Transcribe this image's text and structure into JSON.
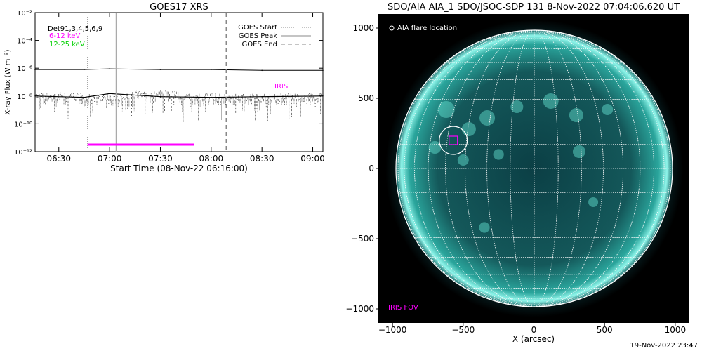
{
  "footer": {
    "timestamp": "19-Nov-2022 23:47"
  },
  "chart_data": [
    {
      "type": "line",
      "title": "GOES17 XRS",
      "xlabel": "Start Time (08-Nov-22 06:16:00)",
      "ylabel": "X-ray Flux (W m⁻²)",
      "x_ticks": [
        "06:30",
        "07:00",
        "07:30",
        "08:00",
        "08:30",
        "09:00"
      ],
      "y_ticks": [
        "10⁻¹²",
        "10⁻¹⁰",
        "10⁻⁸",
        "10⁻⁶",
        "10⁻⁴",
        "10⁻²"
      ],
      "y_log": true,
      "ylim": [
        1e-12,
        0.01
      ],
      "xlim": [
        "06:16",
        "09:06"
      ],
      "detectors_label": "Det91,3,4,5,6,9",
      "series": [
        {
          "name": "6-12 keV",
          "color": "#ff00ff",
          "x": [
            "06:16",
            "06:45",
            "07:00",
            "07:30",
            "08:00",
            "08:30",
            "09:06"
          ],
          "y": [
            8e-07,
            8e-07,
            9e-07,
            8e-07,
            8e-07,
            7e-07,
            7e-07
          ]
        },
        {
          "name": "12-25 keV",
          "color": "#00d000",
          "x": [
            "06:16",
            "06:45",
            "07:00",
            "07:30",
            "08:00",
            "08:30",
            "09:06"
          ],
          "y": [
            1e-08,
            8e-09,
            1.5e-08,
            9e-09,
            8e-09,
            9e-09,
            1e-08
          ]
        }
      ],
      "legend": [
        {
          "label": "GOES Start",
          "style": "dotted"
        },
        {
          "label": "GOES Peak",
          "style": "solid"
        },
        {
          "label": "GOES End",
          "style": "dashed"
        }
      ],
      "event_lines": [
        {
          "label": "GOES Start",
          "x": "06:47"
        },
        {
          "label": "GOES Peak",
          "x": "07:04"
        },
        {
          "label": "GOES End",
          "x": "08:09"
        }
      ],
      "iris_label": "IRIS",
      "iris_interval": {
        "start": "06:47",
        "end": "07:50",
        "color": "#ff00ff"
      }
    },
    {
      "type": "scatter",
      "title": "SDO/AIA AIA_1 SDO/JSOC-SDP 131  8-Nov-2022 07:04:06.620 UT",
      "xlabel": "X (arcsec)",
      "ylabel": "",
      "x_ticks": [
        "−1000",
        "−500",
        "0",
        "500",
        "1000"
      ],
      "y_ticks": [
        "1000",
        "500",
        "0",
        "−500",
        "−1000"
      ],
      "xlim": [
        -1100,
        1100
      ],
      "ylim": [
        -1100,
        1100
      ],
      "legend_flare": "AIA flare location",
      "iris_fov_label": "IRIS FOV",
      "flare_location": {
        "x": -570,
        "y": 200
      },
      "iris_fov": {
        "x": -570,
        "y": 200
      },
      "disk_color": "#2fbfb0",
      "iris_color": "#ff00ff"
    }
  ]
}
